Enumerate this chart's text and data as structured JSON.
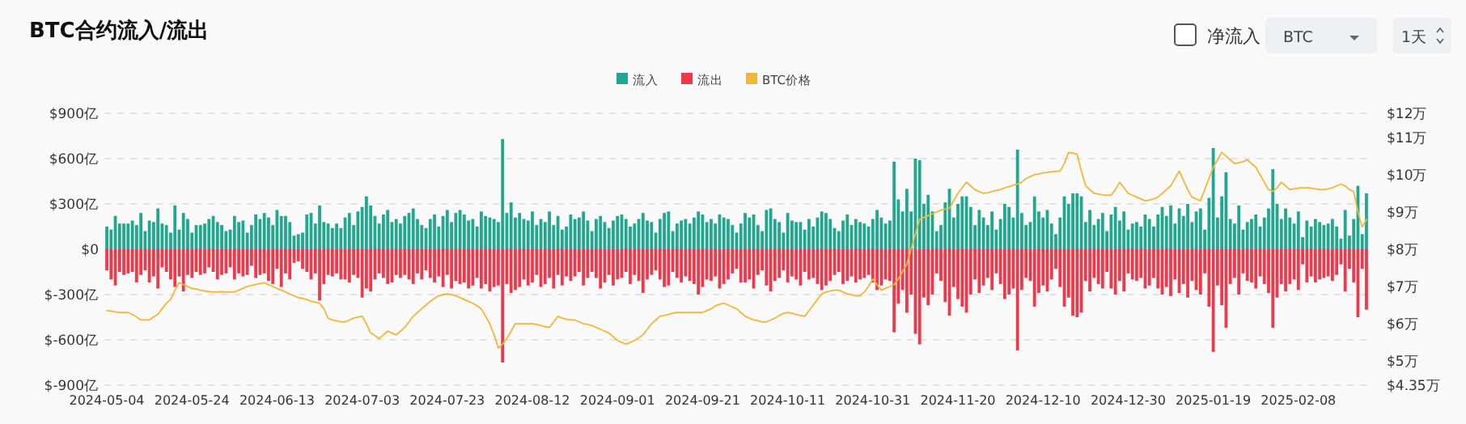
{
  "chart_data": {
    "type": "bar",
    "title": "BTC合约流入/流出",
    "annotations": [
      "净流入",
      "BTC",
      "1天"
    ],
    "legend": "top",
    "grid": "y",
    "marker": "none",
    "categories": [
      "2024-05-04",
      null,
      null,
      null,
      null,
      null,
      null,
      null,
      null,
      null,
      null,
      null,
      null,
      null,
      null,
      null,
      null,
      null,
      null,
      null,
      "2024-05-24",
      null,
      null,
      null,
      null,
      null,
      null,
      null,
      null,
      null,
      null,
      null,
      null,
      null,
      null,
      null,
      null,
      null,
      null,
      null,
      "2024-06-13",
      null,
      null,
      null,
      null,
      null,
      null,
      null,
      null,
      null,
      null,
      null,
      null,
      null,
      null,
      null,
      null,
      null,
      null,
      null,
      "2024-07-03",
      null,
      null,
      null,
      null,
      null,
      null,
      null,
      null,
      null,
      null,
      null,
      null,
      null,
      null,
      null,
      null,
      null,
      null,
      null,
      "2024-07-23",
      null,
      null,
      null,
      null,
      null,
      null,
      null,
      null,
      null,
      null,
      null,
      null,
      null,
      null,
      null,
      null,
      null,
      null,
      null,
      "2024-08-12",
      null,
      null,
      null,
      null,
      null,
      null,
      null,
      null,
      null,
      null,
      null,
      null,
      null,
      null,
      null,
      null,
      null,
      null,
      null,
      "2024-09-01",
      null,
      null,
      null,
      null,
      null,
      null,
      null,
      null,
      null,
      null,
      null,
      null,
      null,
      null,
      null,
      null,
      null,
      null,
      null,
      "2024-09-21",
      null,
      null,
      null,
      null,
      null,
      null,
      null,
      null,
      null,
      null,
      null,
      null,
      null,
      null,
      null,
      null,
      null,
      null,
      null,
      "2024-10-11",
      null,
      null,
      null,
      null,
      null,
      null,
      null,
      null,
      null,
      null,
      null,
      null,
      null,
      null,
      null,
      null,
      null,
      null,
      null,
      "2024-10-31",
      null,
      null,
      null,
      null,
      null,
      null,
      null,
      null,
      null,
      null,
      null,
      null,
      null,
      null,
      null,
      null,
      null,
      null,
      null,
      "2024-11-20",
      null,
      null,
      null,
      null,
      null,
      null,
      null,
      null,
      null,
      null,
      null,
      null,
      null,
      null,
      null,
      null,
      null,
      null,
      null,
      "2024-12-10",
      null,
      null,
      null,
      null,
      null,
      null,
      null,
      null,
      null,
      null,
      null,
      null,
      null,
      null,
      null,
      null,
      null,
      null,
      null,
      "2024-12-30",
      null,
      null,
      null,
      null,
      null,
      null,
      null,
      null,
      null,
      null,
      null,
      null,
      null,
      null,
      null,
      null,
      null,
      null,
      null,
      "2025-01-19",
      null,
      null,
      null,
      null,
      null,
      null,
      null,
      null,
      null,
      null,
      null,
      null,
      null,
      null,
      null,
      null,
      null,
      null,
      null,
      "2025-02-08",
      null,
      null,
      null,
      null,
      null,
      null,
      null,
      null,
      null,
      null,
      null,
      null,
      null,
      null,
      null,
      null
    ],
    "ylim": [
      -900,
      900
    ],
    "yticks": [
      {
        "value": -900,
        "label": "$-900亿"
      },
      {
        "value": -600,
        "label": "$-600亿"
      },
      {
        "value": -300,
        "label": "$-300亿"
      },
      {
        "value": 0,
        "label": "$0"
      },
      {
        "value": 300,
        "label": "$300亿"
      },
      {
        "value": 600,
        "label": "$600亿"
      },
      {
        "value": 900,
        "label": "$900亿"
      }
    ],
    "y2lim": [
      4.35,
      11.65
    ],
    "y2ticks": [
      {
        "value": 4.35,
        "label": "$4.35万"
      },
      {
        "value": 5,
        "label": "$5万"
      },
      {
        "value": 6,
        "label": "$6万"
      },
      {
        "value": 7,
        "label": "$7万"
      },
      {
        "value": 8,
        "label": "$8万"
      },
      {
        "value": 9,
        "label": "$9万"
      },
      {
        "value": 10,
        "label": "$10万"
      },
      {
        "value": 11,
        "label": "$11万"
      },
      {
        "value": 11.65,
        "label": "$12万"
      }
    ],
    "series": [
      {
        "name": "流入",
        "color": "#1fa88e",
        "values": [
          150,
          130,
          220,
          170,
          170,
          170,
          190,
          160,
          240,
          120,
          190,
          180,
          270,
          170,
          160,
          110,
          290,
          130,
          240,
          200,
          110,
          160,
          160,
          170,
          200,
          220,
          180,
          160,
          120,
          130,
          220,
          180,
          190,
          110,
          160,
          230,
          200,
          240,
          210,
          160,
          260,
          220,
          220,
          180,
          90,
          100,
          110,
          230,
          240,
          170,
          290,
          180,
          170,
          140,
          170,
          140,
          210,
          240,
          160,
          250,
          280,
          350,
          290,
          220,
          170,
          230,
          260,
          180,
          200,
          170,
          220,
          240,
          270,
          200,
          160,
          140,
          200,
          230,
          150,
          220,
          260,
          180,
          240,
          260,
          230,
          190,
          200,
          150,
          250,
          220,
          210,
          200,
          180,
          730,
          240,
          310,
          210,
          240,
          200,
          190,
          250,
          160,
          200,
          180,
          250,
          160,
          220,
          130,
          150,
          230,
          200,
          210,
          250,
          190,
          120,
          200,
          220,
          180,
          140,
          190,
          220,
          230,
          200,
          150,
          170,
          200,
          240,
          190,
          180,
          110,
          200,
          240,
          250,
          120,
          170,
          190,
          200,
          170,
          210,
          250,
          230,
          180,
          200,
          170,
          230,
          210,
          200,
          160,
          110,
          170,
          240,
          210,
          230,
          160,
          120,
          260,
          270,
          200,
          180,
          110,
          240,
          190,
          180,
          180,
          130,
          200,
          150,
          210,
          250,
          240,
          200,
          140,
          120,
          190,
          230,
          160,
          200,
          180,
          170,
          150,
          200,
          260,
          210,
          170,
          190,
          580,
          330,
          250,
          400,
          250,
          600,
          590,
          300,
          360,
          250,
          120,
          160,
          310,
          400,
          210,
          300,
          350,
          350,
          280,
          160,
          260,
          210,
          160,
          250,
          130,
          200,
          300,
          280,
          210,
          660,
          240,
          160,
          180,
          350,
          250,
          210,
          260,
          170,
          100,
          210,
          350,
          300,
          370,
          370,
          350,
          180,
          260,
          160,
          200,
          240,
          120,
          230,
          280,
          190,
          250,
          130,
          170,
          180,
          150,
          230,
          200,
          150,
          230,
          280,
          220,
          290,
          170,
          270,
          220,
          300,
          180,
          250,
          270,
          130,
          340,
          670,
          210,
          350,
          510,
          200,
          170,
          290,
          130,
          180,
          200,
          230,
          150,
          210,
          270,
          530,
          300,
          200,
          270,
          210,
          170,
          250,
          80,
          190,
          150,
          200,
          180,
          160,
          170,
          200,
          150,
          70,
          260,
          90,
          200,
          420,
          100,
          370
        ]
      },
      {
        "name": "流出",
        "color": "#f0384b",
        "values": [
          -140,
          -200,
          -240,
          -150,
          -170,
          -160,
          -150,
          -220,
          -170,
          -140,
          -220,
          -180,
          -260,
          -120,
          -150,
          -200,
          -250,
          -180,
          -280,
          -170,
          -190,
          -150,
          -170,
          -160,
          -120,
          -150,
          -200,
          -170,
          -160,
          -120,
          -200,
          -160,
          -180,
          -170,
          -110,
          -190,
          -170,
          -160,
          -210,
          -230,
          -130,
          -250,
          -160,
          -200,
          -90,
          -80,
          -130,
          -150,
          -200,
          -160,
          -340,
          -230,
          -170,
          -180,
          -160,
          -200,
          -200,
          -220,
          -170,
          -190,
          -320,
          -260,
          -280,
          -200,
          -160,
          -190,
          -230,
          -220,
          -170,
          -190,
          -170,
          -200,
          -230,
          -160,
          -200,
          -140,
          -190,
          -220,
          -180,
          -250,
          -170,
          -260,
          -210,
          -230,
          -220,
          -260,
          -240,
          -190,
          -260,
          -230,
          -280,
          -250,
          -240,
          -750,
          -230,
          -290,
          -270,
          -250,
          -200,
          -240,
          -220,
          -170,
          -250,
          -230,
          -190,
          -260,
          -170,
          -240,
          -180,
          -210,
          -180,
          -150,
          -240,
          -190,
          -150,
          -190,
          -260,
          -220,
          -170,
          -240,
          -200,
          -190,
          -150,
          -230,
          -170,
          -210,
          -290,
          -200,
          -170,
          -140,
          -200,
          -250,
          -240,
          -150,
          -190,
          -220,
          -180,
          -210,
          -230,
          -300,
          -250,
          -200,
          -210,
          -180,
          -260,
          -230,
          -200,
          -160,
          -130,
          -220,
          -220,
          -200,
          -260,
          -170,
          -140,
          -240,
          -280,
          -210,
          -190,
          -140,
          -220,
          -180,
          -200,
          -240,
          -150,
          -200,
          -190,
          -230,
          -270,
          -240,
          -210,
          -170,
          -150,
          -230,
          -210,
          -180,
          -220,
          -200,
          -190,
          -170,
          -220,
          -270,
          -240,
          -200,
          -210,
          -550,
          -360,
          -270,
          -420,
          -300,
          -560,
          -630,
          -320,
          -370,
          -300,
          -160,
          -210,
          -350,
          -440,
          -250,
          -330,
          -380,
          -420,
          -300,
          -200,
          -290,
          -240,
          -190,
          -270,
          -160,
          -230,
          -330,
          -300,
          -260,
          -670,
          -270,
          -190,
          -210,
          -380,
          -290,
          -240,
          -280,
          -200,
          -130,
          -250,
          -380,
          -320,
          -440,
          -450,
          -420,
          -210,
          -280,
          -190,
          -230,
          -260,
          -150,
          -260,
          -300,
          -210,
          -280,
          -160,
          -200,
          -210,
          -190,
          -260,
          -240,
          -190,
          -260,
          -300,
          -250,
          -310,
          -200,
          -290,
          -230,
          -320,
          -210,
          -270,
          -300,
          -160,
          -380,
          -680,
          -240,
          -370,
          -520,
          -230,
          -190,
          -300,
          -160,
          -210,
          -220,
          -260,
          -180,
          -230,
          -290,
          -520,
          -320,
          -230,
          -280,
          -230,
          -200,
          -270,
          -100,
          -220,
          -180,
          -220,
          -200,
          -190,
          -180,
          -210,
          -170,
          -100,
          -280,
          -130,
          -220,
          -450,
          -130,
          -400
        ]
      },
      {
        "name": "BTC价格",
        "type": "line",
        "axis": "y2",
        "color": "#f2b739",
        "values": [
          6.35,
          6.34,
          6.32,
          6.3,
          6.3,
          6.3,
          6.25,
          6.18,
          6.1,
          6.1,
          6.1,
          6.18,
          6.25,
          6.4,
          6.55,
          6.65,
          6.9,
          7.1,
          7.05,
          7.0,
          6.95,
          6.93,
          6.9,
          6.88,
          6.86,
          6.85,
          6.85,
          6.86,
          6.85,
          6.85,
          6.85,
          6.9,
          6.95,
          7.0,
          7.03,
          7.05,
          7.08,
          7.1,
          7.05,
          7.0,
          6.95,
          6.9,
          6.85,
          6.8,
          6.75,
          6.7,
          6.68,
          6.65,
          6.6,
          6.58,
          6.55,
          6.4,
          6.15,
          6.1,
          6.08,
          6.05,
          6.05,
          6.1,
          6.15,
          6.18,
          6.2,
          6.0,
          5.75,
          5.68,
          5.6,
          5.7,
          5.8,
          5.75,
          5.7,
          5.8,
          5.9,
          6.05,
          6.2,
          6.3,
          6.4,
          6.5,
          6.6,
          6.68,
          6.75,
          6.78,
          6.8,
          6.78,
          6.75,
          6.7,
          6.65,
          6.6,
          6.55,
          6.48,
          6.4,
          6.2,
          6.0,
          5.7,
          5.35,
          5.45,
          5.6,
          5.8,
          6.0,
          6.0,
          6.0,
          6.0,
          6.0,
          5.98,
          5.95,
          5.92,
          5.9,
          6.05,
          6.2,
          6.15,
          6.12,
          6.1,
          6.1,
          6.05,
          6.0,
          5.98,
          5.95,
          5.9,
          5.85,
          5.8,
          5.75,
          5.65,
          5.55,
          5.5,
          5.45,
          5.5,
          5.55,
          5.62,
          5.7,
          5.85,
          6.0,
          6.1,
          6.2,
          6.22,
          6.25,
          6.28,
          6.3,
          6.3,
          6.3,
          6.3,
          6.3,
          6.3,
          6.3,
          6.35,
          6.4,
          6.48,
          6.52,
          6.55,
          6.5,
          6.45,
          6.4,
          6.3,
          6.2,
          6.15,
          6.1,
          6.08,
          6.05,
          6.05,
          6.1,
          6.15,
          6.22,
          6.28,
          6.3,
          6.28,
          6.25,
          6.22,
          6.2,
          6.35,
          6.5,
          6.65,
          6.8,
          6.85,
          6.88,
          6.9,
          6.9,
          6.85,
          6.8,
          6.78,
          6.75,
          6.75,
          6.85,
          7.0,
          7.2,
          7.05,
          6.9,
          6.95,
          7.0,
          7.05,
          7.2,
          7.4,
          7.6,
          8.0,
          8.4,
          8.8,
          8.85,
          8.9,
          8.95,
          9.0,
          9.05,
          9.08,
          9.1,
          9.3,
          9.5,
          9.65,
          9.8,
          9.7,
          9.6,
          9.55,
          9.5,
          9.52,
          9.55,
          9.58,
          9.6,
          9.65,
          9.68,
          9.72,
          9.75,
          9.8,
          9.9,
          9.95,
          10.0,
          10.02,
          10.05,
          10.06,
          10.08,
          10.09,
          10.1,
          10.3,
          10.6,
          10.58,
          10.55,
          10.1,
          9.7,
          9.6,
          9.5,
          9.48,
          9.46,
          9.45,
          9.45,
          9.6,
          9.8,
          9.65,
          9.5,
          9.45,
          9.4,
          9.35,
          9.3,
          9.32,
          9.35,
          9.4,
          9.5,
          9.6,
          9.7,
          9.9,
          10.1,
          9.85,
          9.6,
          9.4,
          9.35,
          9.3,
          9.6,
          9.9,
          10.2,
          10.4,
          10.6,
          10.5,
          10.4,
          10.3,
          10.32,
          10.35,
          10.4,
          10.3,
          10.2,
          10.0,
          9.8,
          9.6,
          9.55,
          9.65,
          9.8,
          9.7,
          9.6,
          9.62,
          9.64,
          9.65,
          9.65,
          9.64,
          9.62,
          9.6,
          9.6,
          9.62,
          9.65,
          9.7,
          9.75,
          9.7,
          9.6,
          9.55,
          9.0,
          8.6,
          8.8
        ]
      }
    ]
  }
}
